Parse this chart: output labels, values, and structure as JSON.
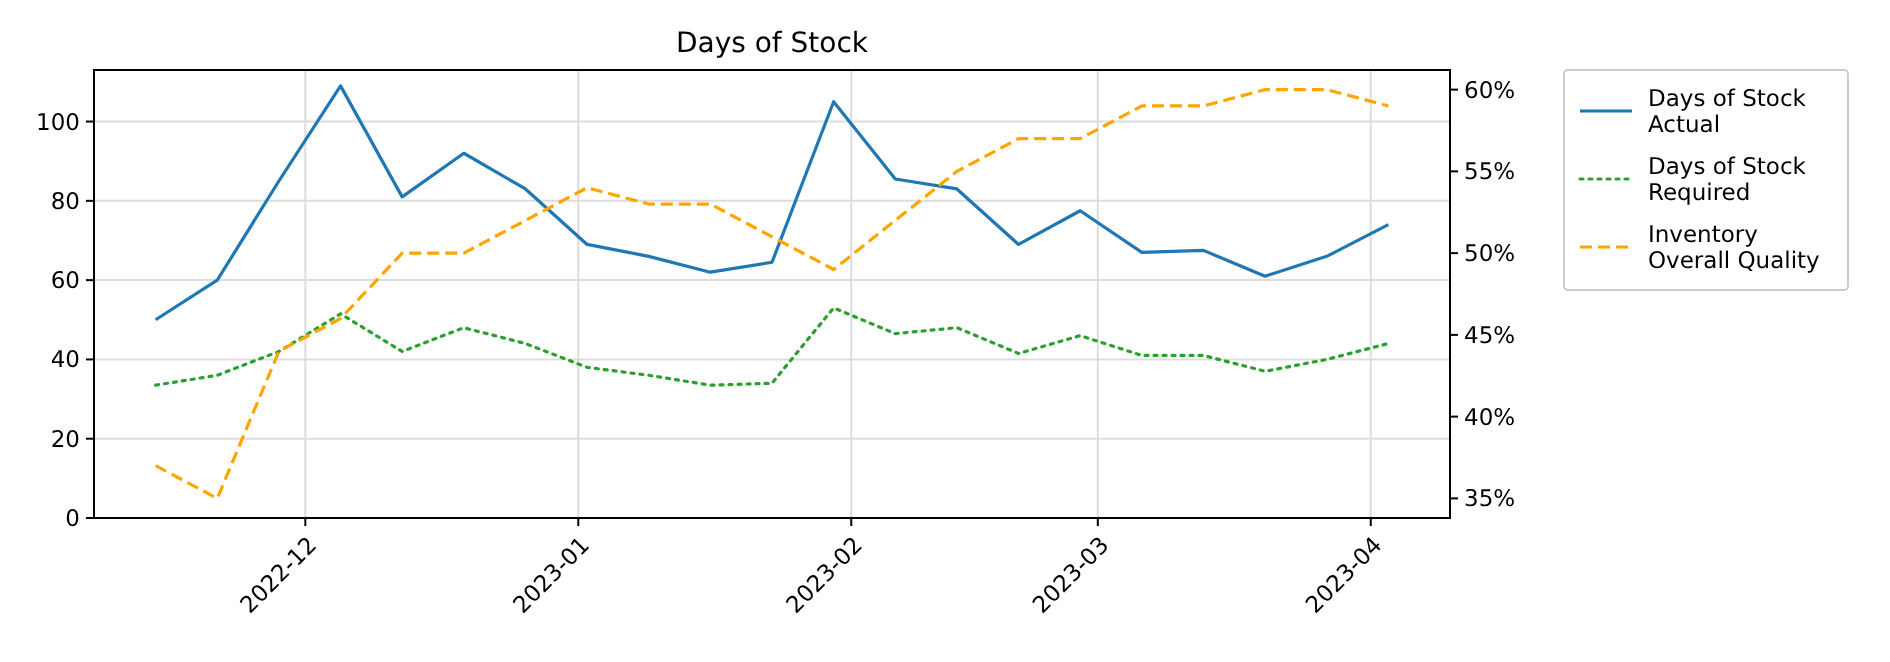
{
  "chart_data": {
    "type": "line",
    "title": "Days of Stock",
    "x": [
      "2022-11-14",
      "2022-11-21",
      "2022-11-28",
      "2022-12-05",
      "2022-12-12",
      "2022-12-19",
      "2022-12-26",
      "2023-01-02",
      "2023-01-09",
      "2023-01-16",
      "2023-01-23",
      "2023-01-30",
      "2023-02-06",
      "2023-02-13",
      "2023-02-20",
      "2023-02-27",
      "2023-03-06",
      "2023-03-13",
      "2023-03-20",
      "2023-03-27",
      "2023-04-03"
    ],
    "series": [
      {
        "name": "Days of Stock\nActual",
        "color": "#1f77b4",
        "line_style": "solid",
        "values": [
          50,
          60,
          85,
          109,
          81,
          92,
          83,
          69,
          66,
          62,
          64.5,
          105,
          85.5,
          83,
          69,
          77.5,
          67,
          67.5,
          61,
          66,
          74
        ]
      },
      {
        "name": "Days of Stock\nRequired",
        "color": "#2ca02c",
        "line_style": "dotted",
        "values": [
          33.5,
          36,
          42,
          51.5,
          42,
          48,
          44,
          38,
          36,
          33.5,
          34,
          53,
          46.5,
          48,
          41.5,
          46,
          41,
          41,
          37,
          40,
          44
        ]
      },
      {
        "name": "Inventory\nOverall Quality",
        "color": "#ffa500",
        "line_style": "dashed",
        "axis": "y2",
        "values": [
          37,
          35,
          44,
          46,
          50,
          50,
          52,
          54,
          53,
          53,
          51,
          49,
          52,
          55,
          57,
          57,
          59,
          59,
          60,
          60,
          59
        ]
      }
    ],
    "xlim": [
      "2022-11-07",
      "2023-04-10"
    ],
    "xticks": [
      {
        "value": "2022-12-01",
        "label": "2022-12"
      },
      {
        "value": "2023-01-01",
        "label": "2023-01"
      },
      {
        "value": "2023-02-01",
        "label": "2023-02"
      },
      {
        "value": "2023-03-01",
        "label": "2023-03"
      },
      {
        "value": "2023-04-01",
        "label": "2023-04"
      }
    ],
    "ylim": [
      0,
      113
    ],
    "yticks": [
      0,
      20,
      40,
      60,
      80,
      100
    ],
    "y2lim": [
      33.8,
      61.2
    ],
    "y2ticks": [
      {
        "value": 35,
        "label": "35%"
      },
      {
        "value": 40,
        "label": "40%"
      },
      {
        "value": 45,
        "label": "45%"
      },
      {
        "value": 50,
        "label": "50%"
      },
      {
        "value": 55,
        "label": "55%"
      },
      {
        "value": 60,
        "label": "60%"
      }
    ],
    "grid": true,
    "legend": "top right"
  }
}
